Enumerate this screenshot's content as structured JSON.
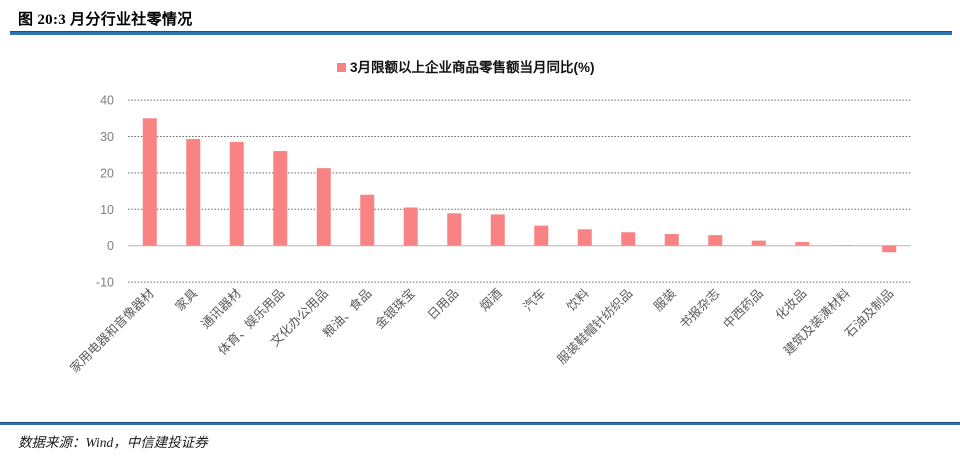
{
  "header": {
    "title": "图 20:3 月分行业社零情况"
  },
  "chart_data": {
    "type": "bar",
    "title": "3月限额以上企业商品零售额当月同比(%)",
    "legend": [
      "3月限额以上企业商品零售额当月同比(%)"
    ],
    "legend_position": "top-center",
    "categories": [
      "家用电器和音像器材",
      "家具",
      "通讯器材",
      "体育、娱乐用品",
      "文化办公用品",
      "粮油、食品",
      "金银珠宝",
      "日用品",
      "烟酒",
      "汽车",
      "饮料",
      "服装鞋帽针纺织品",
      "服装",
      "书报杂志",
      "中西药品",
      "化妆品",
      "建筑及装潢材料",
      "石油及制品"
    ],
    "values": [
      35.0,
      29.3,
      28.5,
      26.0,
      21.3,
      14.0,
      10.5,
      8.9,
      8.6,
      5.5,
      4.5,
      3.7,
      3.2,
      2.9,
      1.4,
      1.0,
      0.1,
      -1.8
    ],
    "xlabel": "",
    "ylabel": "",
    "ylim": [
      -10,
      40
    ],
    "yticks": [
      40,
      30,
      20,
      10,
      0,
      -10
    ],
    "grid": "dotted-horizontal",
    "bar_color": "#F98383"
  },
  "footer": {
    "source": "数据来源：Wind，中信建投证券"
  },
  "colors": {
    "bar": "#F98383",
    "rule_blue": "#2E74B5",
    "rule_blue_dark": "#1F4E79",
    "grid_line": "#6E6E6E",
    "zero_line": "#C8C8C8",
    "tick_text": "#7F7F7F",
    "category_text": "#5A5A5A",
    "legend_text": "#111111"
  }
}
